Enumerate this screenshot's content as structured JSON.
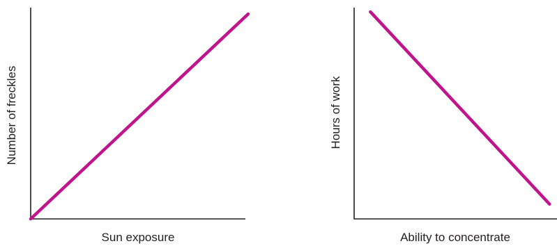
{
  "chart_data": [
    {
      "type": "line",
      "title": "",
      "xlabel": "Sun exposure",
      "ylabel": "Number of freckles",
      "xlim": [
        0,
        1
      ],
      "ylim": [
        0,
        1
      ],
      "grid": false,
      "series": [
        {
          "values": [
            {
              "x": 0,
              "y": 0
            },
            {
              "x": 1,
              "y": 0.97
            }
          ],
          "color": "#c0148c"
        }
      ]
    },
    {
      "type": "line",
      "title": "",
      "xlabel": "Ability to concentrate",
      "ylabel": "Hours of work",
      "xlim": [
        0,
        1
      ],
      "ylim": [
        0,
        1
      ],
      "grid": false,
      "series": [
        {
          "values": [
            {
              "x": 0.08,
              "y": 0.98
            },
            {
              "x": 0.96,
              "y": 0.07
            }
          ],
          "color": "#c0148c"
        }
      ]
    }
  ]
}
